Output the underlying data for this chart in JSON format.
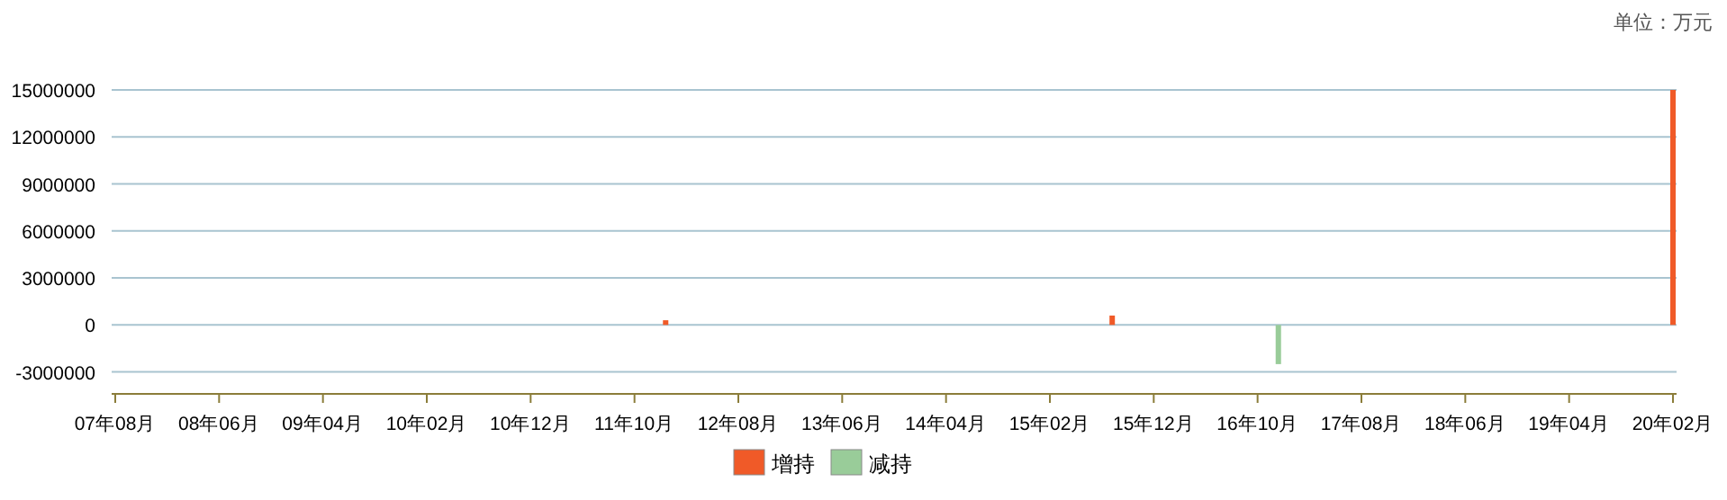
{
  "chart_data": {
    "type": "bar",
    "annotations": [
      "单位：万元"
    ],
    "x": [
      "2012-01",
      "2015-08",
      "2016-12",
      "2020-02"
    ],
    "series": [
      {
        "name": "增持",
        "color": "#f05a28",
        "values": [
          300000,
          600000,
          null,
          15000000
        ]
      },
      {
        "name": "减持",
        "color": "#99cc99",
        "values": [
          null,
          null,
          -2500000,
          null
        ]
      }
    ],
    "xlim": [
      "2007-08",
      "2020-02"
    ],
    "xticks": [
      {
        "value": "2007-08",
        "label": "07年08月"
      },
      {
        "value": "2008-06",
        "label": "08年06月"
      },
      {
        "value": "2009-04",
        "label": "09年04月"
      },
      {
        "value": "2010-02",
        "label": "10年02月"
      },
      {
        "value": "2010-12",
        "label": "10年12月"
      },
      {
        "value": "2011-10",
        "label": "11年10月"
      },
      {
        "value": "2012-08",
        "label": "12年08月"
      },
      {
        "value": "2013-06",
        "label": "13年06月"
      },
      {
        "value": "2014-04",
        "label": "14年04月"
      },
      {
        "value": "2015-02",
        "label": "15年02月"
      },
      {
        "value": "2015-12",
        "label": "15年12月"
      },
      {
        "value": "2016-10",
        "label": "16年10月"
      },
      {
        "value": "2017-08",
        "label": "17年08月"
      },
      {
        "value": "2018-06",
        "label": "18年06月"
      },
      {
        "value": "2019-04",
        "label": "19年04月"
      },
      {
        "value": "2020-02",
        "label": "20年02月"
      }
    ],
    "ylim": [
      -4400000,
      15000000
    ],
    "yticks": [
      -3000000,
      0,
      3000000,
      6000000,
      9000000,
      12000000,
      15000000
    ],
    "grid": "y",
    "legend": "bottom"
  }
}
